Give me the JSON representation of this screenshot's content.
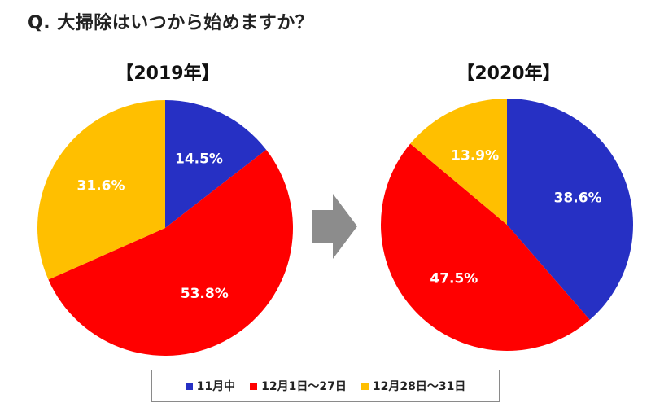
{
  "question": "Q. 大掃除はいつから始めますか？",
  "legend": [
    {
      "label": "11月中",
      "color": "#2630c4"
    },
    {
      "label": "12月1日～27日",
      "color": "#ff0000"
    },
    {
      "label": "12月28日～31日",
      "color": "#ffbf00"
    }
  ],
  "chart_data": [
    {
      "type": "pie",
      "title": "【2019年】",
      "categories": [
        "11月中",
        "12月1日～27日",
        "12月28日～31日"
      ],
      "values": [
        14.5,
        53.8,
        31.6
      ],
      "labels": [
        "14.5%",
        "53.8%",
        "31.6%"
      ],
      "colors": [
        "#2630c4",
        "#ff0000",
        "#ffbf00"
      ],
      "legend_position": "bottom"
    },
    {
      "type": "pie",
      "title": "【2020年】",
      "categories": [
        "11月中",
        "12月1日～27日",
        "12月28日～31日"
      ],
      "values": [
        38.6,
        47.5,
        13.9
      ],
      "labels": [
        "38.6%",
        "47.5%",
        "13.9%"
      ],
      "colors": [
        "#2630c4",
        "#ff0000",
        "#ffbf00"
      ],
      "legend_position": "bottom"
    }
  ]
}
